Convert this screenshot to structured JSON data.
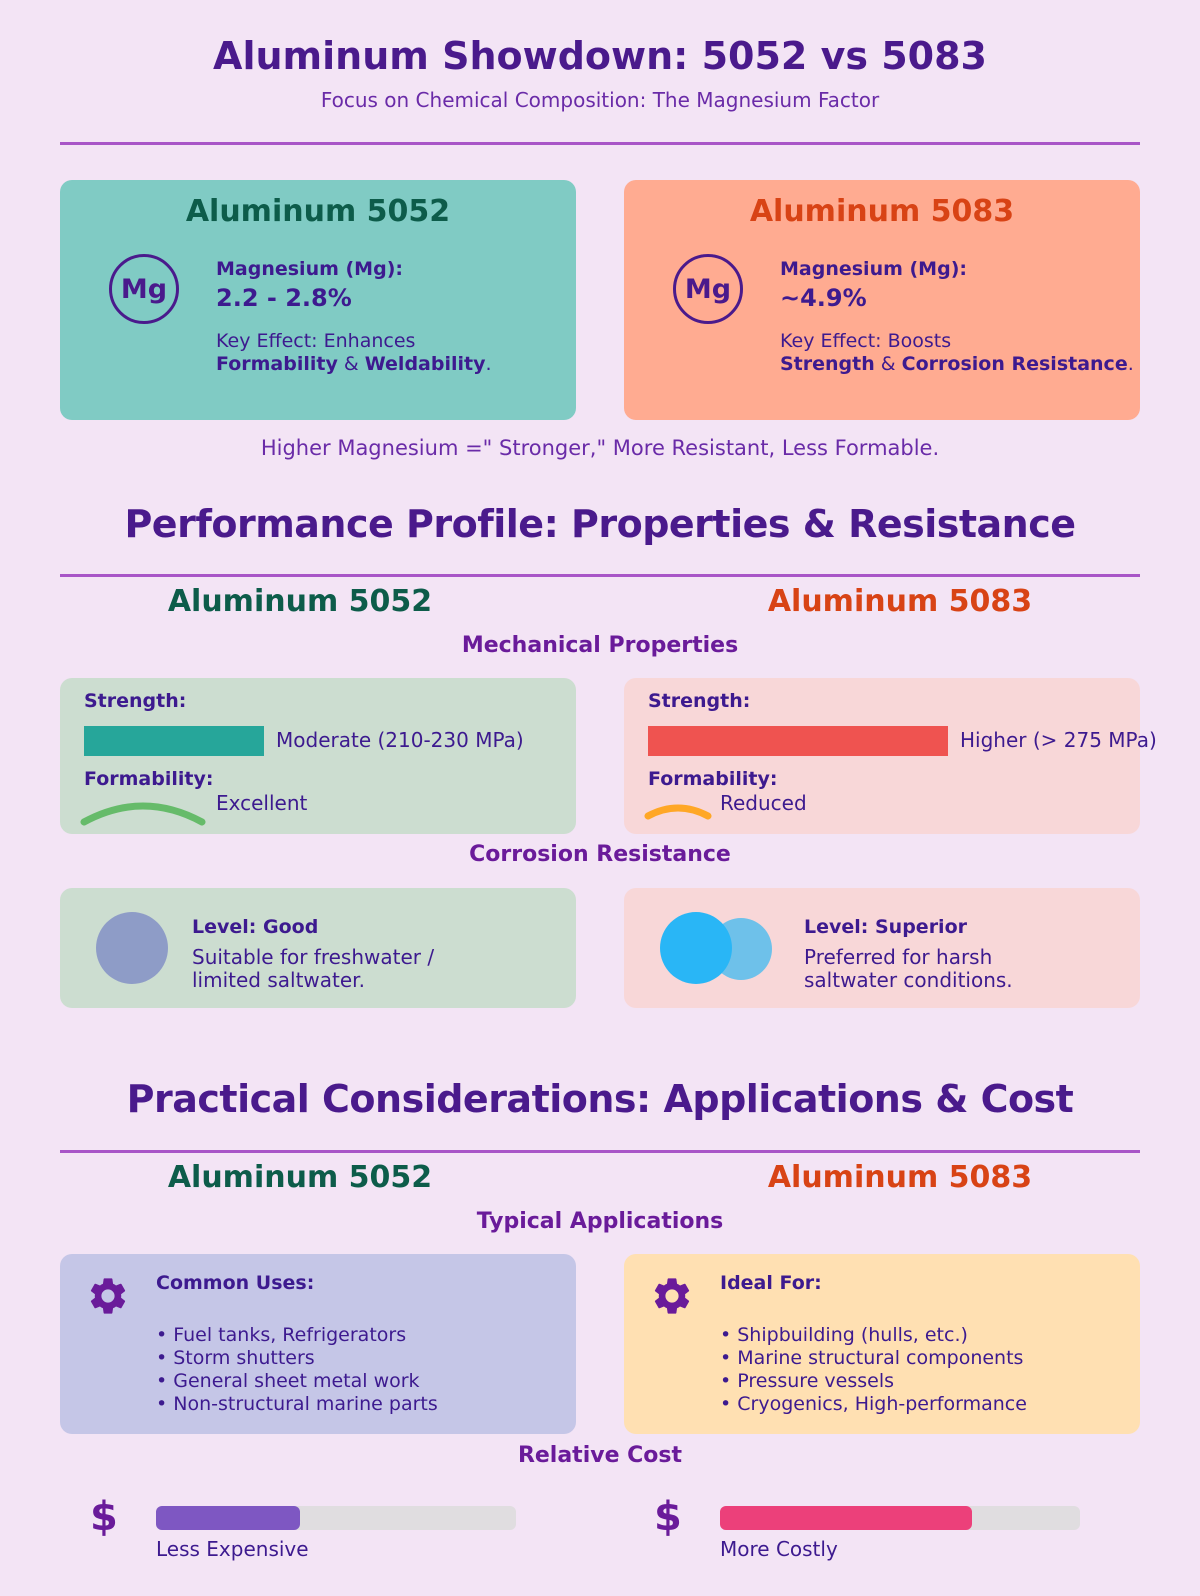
{
  "header": {
    "title": "Aluminum Showdown: 5052 vs 5083",
    "subtitle": "Focus on Chemical Composition: The Magnesium Factor"
  },
  "composition": {
    "a5052": {
      "title": "Aluminum 5052",
      "symbol": "Mg",
      "mg_label": "Magnesium (Mg):",
      "mg_value": "2.2 - 2.8%",
      "effect_prefix": "Key Effect: Enhances",
      "effect_term1": "Formability",
      "effect_and": " & ",
      "effect_term2": "Weldability",
      "effect_end": "."
    },
    "a5083": {
      "title": "Aluminum 5083",
      "symbol": "Mg",
      "mg_label": "Magnesium (Mg):",
      "mg_value": "~4.9%",
      "effect_prefix": "Key Effect: Boosts",
      "effect_term1": "Strength",
      "effect_and": " & ",
      "effect_term2": "Corrosion Resistance",
      "effect_end": "."
    },
    "summary": "Higher Magnesium =\" Stronger,\" More Resistant, Less Formable."
  },
  "performance": {
    "title": "Performance Profile: Properties & Resistance",
    "col_5052": "Aluminum 5052",
    "col_5083": "Aluminum 5083",
    "mech_title": "Mechanical Properties",
    "a5052": {
      "strength_label": "Strength:",
      "strength_text": "Moderate (210-230 MPa)",
      "strength_fraction": 0.6,
      "formability_label": "Formability:",
      "formability_text": "Excellent",
      "corrosion_level": "Level: Good",
      "corrosion_desc_1": "Suitable for freshwater /",
      "corrosion_desc_2": "limited saltwater."
    },
    "a5083": {
      "strength_label": "Strength:",
      "strength_text": "Higher (> 275 MPa)",
      "strength_fraction": 1.0,
      "formability_label": "Formability:",
      "formability_text": "Reduced",
      "corrosion_level": "Level: Superior",
      "corrosion_desc_1": "Preferred for harsh",
      "corrosion_desc_2": "saltwater conditions."
    },
    "corrosion_title": "Corrosion Resistance"
  },
  "practical": {
    "title": "Practical Considerations: Applications & Cost",
    "col_5052": "Aluminum 5052",
    "col_5083": "Aluminum 5083",
    "apps_title": "Typical Applications",
    "a5052": {
      "heading": "Common Uses:",
      "items": [
        "• Fuel tanks, Refrigerators",
        "• Storm shutters",
        "• General sheet metal work",
        "• Non-structural marine parts"
      ],
      "cost_label": "Less Expensive",
      "cost_fraction": 0.4
    },
    "a5083": {
      "heading": "Ideal For:",
      "items": [
        "• Shipbuilding (hulls, etc.)",
        "• Marine structural components",
        "• Pressure vessels",
        "• Cryogenics, High-performance"
      ],
      "cost_label": "More Costly",
      "cost_fraction": 0.7
    },
    "cost_title": "Relative Cost",
    "currency_symbol": "$"
  },
  "colors": {
    "bar_5052": "#26a69a",
    "bar_5083": "#ef5350",
    "arc_5052": "#66bb6a",
    "arc_5083": "#ffa726",
    "cost_5052": "#7e57c2",
    "cost_5083": "#ec407a",
    "corrosion_good": "#8e9cc7",
    "corrosion_superior_a": "#29b6f6",
    "corrosion_superior_b": "#6ec1ea"
  },
  "icons": {
    "element": "mg-element-icon",
    "applications": "gear-icon",
    "cost": "dollar-icon"
  }
}
